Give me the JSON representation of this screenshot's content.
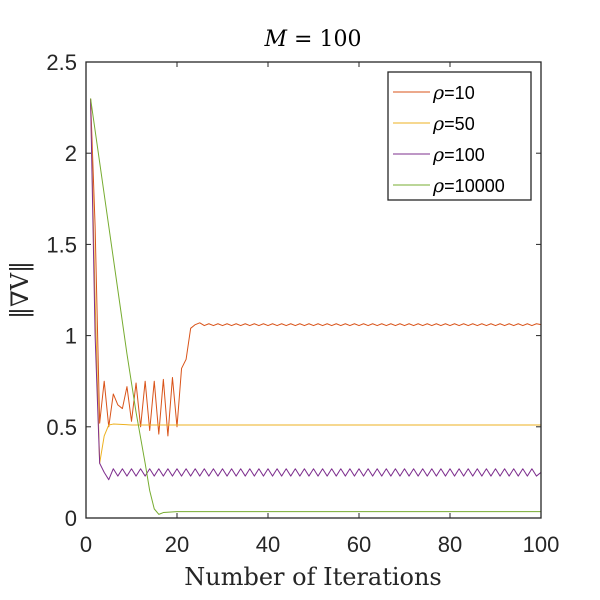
{
  "chart_data": {
    "type": "line",
    "title": "M = 100",
    "title_var": "M",
    "title_rest": " = 100",
    "xlabel": "Number of Iterations",
    "ylabel": "‖∇V‖",
    "xlim": [
      0,
      100
    ],
    "ylim": [
      0,
      2.5
    ],
    "xticks": [
      0,
      20,
      40,
      60,
      80,
      100
    ],
    "yticks": [
      0,
      0.5,
      1,
      1.5,
      2,
      2.5
    ],
    "xtick_labels": [
      "0",
      "20",
      "40",
      "60",
      "80",
      "100"
    ],
    "ytick_labels": [
      "0",
      "0.5",
      "1",
      "1.5",
      "2",
      "2.5"
    ],
    "grid": false,
    "legend_position": "top-right",
    "series": [
      {
        "name": "ρ=10",
        "label_symbol": "ρ",
        "label_value": "=10",
        "color": "#D95319",
        "points": [
          [
            1,
            2.3
          ],
          [
            2,
            1.6
          ],
          [
            3,
            0.52
          ],
          [
            4,
            0.75
          ],
          [
            5,
            0.5
          ],
          [
            6,
            0.68
          ],
          [
            7,
            0.62
          ],
          [
            8,
            0.6
          ],
          [
            9,
            0.72
          ],
          [
            10,
            0.53
          ],
          [
            11,
            0.74
          ],
          [
            12,
            0.5
          ],
          [
            13,
            0.75
          ],
          [
            14,
            0.48
          ],
          [
            15,
            0.75
          ],
          [
            16,
            0.46
          ],
          [
            17,
            0.76
          ],
          [
            18,
            0.45
          ],
          [
            19,
            0.77
          ],
          [
            20,
            0.5
          ],
          [
            21,
            0.82
          ],
          [
            22,
            0.87
          ],
          [
            23,
            1.04
          ],
          [
            24,
            1.06
          ],
          [
            25,
            1.07
          ],
          [
            26,
            1.055
          ],
          [
            27,
            1.065
          ],
          [
            28,
            1.055
          ],
          [
            29,
            1.065
          ],
          [
            30,
            1.055
          ],
          [
            31,
            1.065
          ],
          [
            32,
            1.055
          ],
          [
            33,
            1.065
          ],
          [
            34,
            1.055
          ],
          [
            35,
            1.065
          ],
          [
            36,
            1.055
          ],
          [
            37,
            1.065
          ],
          [
            38,
            1.055
          ],
          [
            39,
            1.065
          ],
          [
            40,
            1.055
          ],
          [
            41,
            1.065
          ],
          [
            42,
            1.055
          ],
          [
            43,
            1.065
          ],
          [
            44,
            1.055
          ],
          [
            45,
            1.065
          ],
          [
            46,
            1.055
          ],
          [
            47,
            1.065
          ],
          [
            48,
            1.055
          ],
          [
            49,
            1.065
          ],
          [
            50,
            1.055
          ],
          [
            51,
            1.065
          ],
          [
            52,
            1.055
          ],
          [
            53,
            1.065
          ],
          [
            54,
            1.055
          ],
          [
            55,
            1.065
          ],
          [
            56,
            1.055
          ],
          [
            57,
            1.065
          ],
          [
            58,
            1.055
          ],
          [
            59,
            1.065
          ],
          [
            60,
            1.055
          ],
          [
            61,
            1.065
          ],
          [
            62,
            1.055
          ],
          [
            63,
            1.065
          ],
          [
            64,
            1.055
          ],
          [
            65,
            1.065
          ],
          [
            66,
            1.055
          ],
          [
            67,
            1.065
          ],
          [
            68,
            1.055
          ],
          [
            69,
            1.065
          ],
          [
            70,
            1.055
          ],
          [
            71,
            1.065
          ],
          [
            72,
            1.055
          ],
          [
            73,
            1.065
          ],
          [
            74,
            1.055
          ],
          [
            75,
            1.065
          ],
          [
            76,
            1.055
          ],
          [
            77,
            1.065
          ],
          [
            78,
            1.055
          ],
          [
            79,
            1.065
          ],
          [
            80,
            1.055
          ],
          [
            81,
            1.065
          ],
          [
            82,
            1.055
          ],
          [
            83,
            1.065
          ],
          [
            84,
            1.055
          ],
          [
            85,
            1.065
          ],
          [
            86,
            1.055
          ],
          [
            87,
            1.065
          ],
          [
            88,
            1.055
          ],
          [
            89,
            1.065
          ],
          [
            90,
            1.055
          ],
          [
            91,
            1.065
          ],
          [
            92,
            1.055
          ],
          [
            93,
            1.065
          ],
          [
            94,
            1.055
          ],
          [
            95,
            1.065
          ],
          [
            96,
            1.055
          ],
          [
            97,
            1.065
          ],
          [
            98,
            1.055
          ],
          [
            99,
            1.065
          ],
          [
            100,
            1.06
          ]
        ]
      },
      {
        "name": "ρ=50",
        "label_symbol": "ρ",
        "label_value": "=50",
        "color": "#EDB120",
        "points": [
          [
            1,
            2.3
          ],
          [
            2,
            1.2
          ],
          [
            3,
            0.3
          ],
          [
            4,
            0.45
          ],
          [
            5,
            0.51
          ],
          [
            6,
            0.515
          ],
          [
            10,
            0.51
          ],
          [
            20,
            0.51
          ],
          [
            40,
            0.51
          ],
          [
            60,
            0.51
          ],
          [
            80,
            0.51
          ],
          [
            100,
            0.51
          ]
        ]
      },
      {
        "name": "ρ=100",
        "label_symbol": "ρ",
        "label_value": "=100",
        "color": "#7E2F8E",
        "points": [
          [
            1,
            2.3
          ],
          [
            2,
            1.0
          ],
          [
            3,
            0.3
          ],
          [
            4,
            0.25
          ],
          [
            5,
            0.21
          ],
          [
            6,
            0.27
          ],
          [
            7,
            0.23
          ],
          [
            8,
            0.27
          ],
          [
            9,
            0.23
          ],
          [
            10,
            0.27
          ],
          [
            11,
            0.23
          ],
          [
            12,
            0.27
          ],
          [
            13,
            0.23
          ],
          [
            14,
            0.27
          ],
          [
            15,
            0.23
          ],
          [
            16,
            0.27
          ],
          [
            17,
            0.23
          ],
          [
            18,
            0.27
          ],
          [
            19,
            0.23
          ],
          [
            20,
            0.27
          ],
          [
            21,
            0.23
          ],
          [
            22,
            0.27
          ],
          [
            23,
            0.23
          ],
          [
            24,
            0.27
          ],
          [
            25,
            0.23
          ],
          [
            26,
            0.27
          ],
          [
            27,
            0.23
          ],
          [
            28,
            0.27
          ],
          [
            29,
            0.23
          ],
          [
            30,
            0.27
          ],
          [
            31,
            0.23
          ],
          [
            32,
            0.27
          ],
          [
            33,
            0.23
          ],
          [
            34,
            0.27
          ],
          [
            35,
            0.23
          ],
          [
            36,
            0.27
          ],
          [
            37,
            0.23
          ],
          [
            38,
            0.27
          ],
          [
            39,
            0.23
          ],
          [
            40,
            0.27
          ],
          [
            41,
            0.23
          ],
          [
            42,
            0.27
          ],
          [
            43,
            0.23
          ],
          [
            44,
            0.27
          ],
          [
            45,
            0.23
          ],
          [
            46,
            0.27
          ],
          [
            47,
            0.23
          ],
          [
            48,
            0.27
          ],
          [
            49,
            0.23
          ],
          [
            50,
            0.27
          ],
          [
            51,
            0.23
          ],
          [
            52,
            0.27
          ],
          [
            53,
            0.23
          ],
          [
            54,
            0.27
          ],
          [
            55,
            0.23
          ],
          [
            56,
            0.27
          ],
          [
            57,
            0.23
          ],
          [
            58,
            0.27
          ],
          [
            59,
            0.23
          ],
          [
            60,
            0.27
          ],
          [
            61,
            0.23
          ],
          [
            62,
            0.27
          ],
          [
            63,
            0.23
          ],
          [
            64,
            0.27
          ],
          [
            65,
            0.23
          ],
          [
            66,
            0.27
          ],
          [
            67,
            0.23
          ],
          [
            68,
            0.27
          ],
          [
            69,
            0.23
          ],
          [
            70,
            0.27
          ],
          [
            71,
            0.23
          ],
          [
            72,
            0.27
          ],
          [
            73,
            0.23
          ],
          [
            74,
            0.27
          ],
          [
            75,
            0.23
          ],
          [
            76,
            0.27
          ],
          [
            77,
            0.23
          ],
          [
            78,
            0.27
          ],
          [
            79,
            0.23
          ],
          [
            80,
            0.27
          ],
          [
            81,
            0.23
          ],
          [
            82,
            0.27
          ],
          [
            83,
            0.23
          ],
          [
            84,
            0.27
          ],
          [
            85,
            0.23
          ],
          [
            86,
            0.27
          ],
          [
            87,
            0.23
          ],
          [
            88,
            0.27
          ],
          [
            89,
            0.23
          ],
          [
            90,
            0.27
          ],
          [
            91,
            0.23
          ],
          [
            92,
            0.27
          ],
          [
            93,
            0.23
          ],
          [
            94,
            0.27
          ],
          [
            95,
            0.23
          ],
          [
            96,
            0.27
          ],
          [
            97,
            0.23
          ],
          [
            98,
            0.27
          ],
          [
            99,
            0.23
          ],
          [
            100,
            0.25
          ]
        ]
      },
      {
        "name": "ρ=10000",
        "label_symbol": "ρ",
        "label_value": "=10000",
        "color": "#77AC30",
        "points": [
          [
            1,
            2.3
          ],
          [
            3,
            1.95
          ],
          [
            5,
            1.6
          ],
          [
            7,
            1.25
          ],
          [
            9,
            0.9
          ],
          [
            11,
            0.58
          ],
          [
            13,
            0.3
          ],
          [
            14,
            0.15
          ],
          [
            15,
            0.05
          ],
          [
            16,
            0.02
          ],
          [
            17,
            0.03
          ],
          [
            20,
            0.035
          ],
          [
            40,
            0.035
          ],
          [
            60,
            0.035
          ],
          [
            80,
            0.035
          ],
          [
            100,
            0.035
          ]
        ]
      }
    ]
  }
}
